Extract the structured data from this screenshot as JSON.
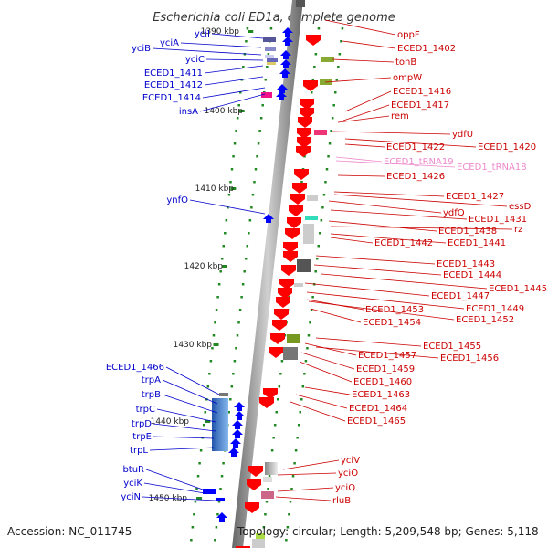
{
  "title": "Escherichia coli ED1a, complete genome",
  "footer": {
    "accession": "Accession: NC_011745",
    "topology": "Topology: circular; Length: 5,209,548 bp; Genes: 5,118"
  },
  "ticks": [
    {
      "label": "1390 kbp",
      "pos": 1390
    },
    {
      "label": "1400 kbp",
      "pos": 1400
    },
    {
      "label": "1410 kbp",
      "pos": 1410
    },
    {
      "label": "1420 kbp",
      "pos": 1420
    },
    {
      "label": "1430 kbp",
      "pos": 1430
    },
    {
      "label": "1440 kbp",
      "pos": 1440
    },
    {
      "label": "1450 kbp",
      "pos": 1450
    }
  ],
  "forward_genes": [
    {
      "name": "yciI"
    },
    {
      "name": "yciA"
    },
    {
      "name": "yciB"
    },
    {
      "name": "yciC"
    },
    {
      "name": "ECED1_1411"
    },
    {
      "name": "ECED1_1412"
    },
    {
      "name": "ECED1_1414"
    },
    {
      "name": "insA"
    },
    {
      "name": "ynfO"
    },
    {
      "name": "ECED1_1466"
    },
    {
      "name": "trpA"
    },
    {
      "name": "trpB"
    },
    {
      "name": "trpC"
    },
    {
      "name": "trpD"
    },
    {
      "name": "trpE"
    },
    {
      "name": "trpL"
    },
    {
      "name": "btuR"
    },
    {
      "name": "yciK"
    },
    {
      "name": "yciN"
    }
  ],
  "reverse_genes": [
    {
      "name": "oppF"
    },
    {
      "name": "ECED1_1402"
    },
    {
      "name": "tonB"
    },
    {
      "name": "ompW"
    },
    {
      "name": "ECED1_1416"
    },
    {
      "name": "ECED1_1417"
    },
    {
      "name": "rem"
    },
    {
      "name": "ydfU"
    },
    {
      "name": "ECED1_1422"
    },
    {
      "name": "ECED1_1420"
    },
    {
      "name": "ECED1_1426"
    },
    {
      "name": "ECED1_1427"
    },
    {
      "name": "essD"
    },
    {
      "name": "ydfQ"
    },
    {
      "name": "ECED1_1431"
    },
    {
      "name": "ECED1_1438"
    },
    {
      "name": "rz"
    },
    {
      "name": "ECED1_1442"
    },
    {
      "name": "ECED1_1441"
    },
    {
      "name": "ECED1_1443"
    },
    {
      "name": "ECED1_1444"
    },
    {
      "name": "ECED1_1445"
    },
    {
      "name": "ECED1_1447"
    },
    {
      "name": "ECED1_1449"
    },
    {
      "name": "ECED1_1453"
    },
    {
      "name": "ECED1_1452"
    },
    {
      "name": "ECED1_1454"
    },
    {
      "name": "ECED1_1455"
    },
    {
      "name": "ECED1_1457"
    },
    {
      "name": "ECED1_1456"
    },
    {
      "name": "ECED1_1459"
    },
    {
      "name": "ECED1_1460"
    },
    {
      "name": "ECED1_1463"
    },
    {
      "name": "ECED1_1464"
    },
    {
      "name": "ECED1_1465"
    },
    {
      "name": "yciV"
    },
    {
      "name": "yciO"
    },
    {
      "name": "yciQ"
    },
    {
      "name": "rluB"
    }
  ],
  "trna_genes": [
    {
      "name": "ECED1_tRNA19"
    },
    {
      "name": "ECED1_tRNA18"
    }
  ],
  "colors": {
    "forward": "#0000cc",
    "reverse": "#cc0000",
    "reverse_gene": "#ff0000",
    "trna": "#ee88cc",
    "backbone": "#888888",
    "tick": "#228822"
  }
}
